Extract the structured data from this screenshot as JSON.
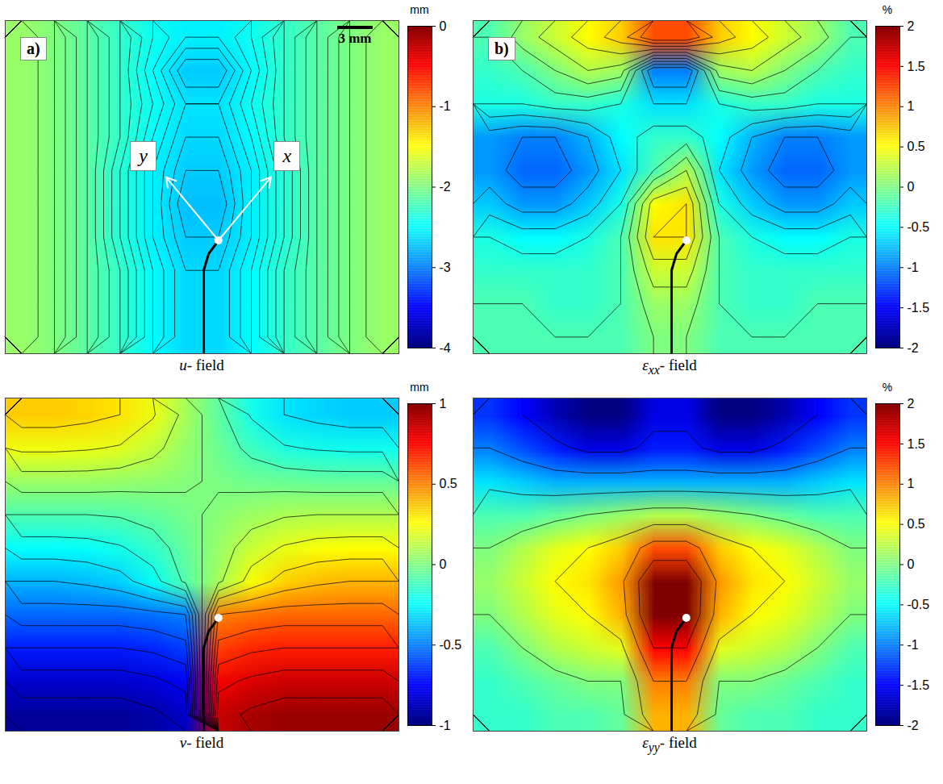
{
  "chart_data": [
    {
      "type": "heatmap",
      "panel_label": "a)",
      "scale_bar": "3 mm",
      "axis_arrows": [
        "y",
        "x"
      ],
      "caption": {
        "symbol": "u",
        "suffix": "- field"
      },
      "unit": "mm",
      "colorbar": {
        "range": [
          -4,
          0
        ],
        "ticks": [
          0,
          -1,
          -2,
          -3,
          -4
        ]
      },
      "crack": {
        "x": [
          6.05,
          6.05,
          6.2,
          6.5
        ],
        "y": [
          10,
          7.5,
          7,
          6.6
        ]
      },
      "crack_tip": {
        "x": 6.5,
        "y": 6.6
      },
      "cells": [
        [
          -1.9,
          -2.0,
          -2.15,
          -2.3,
          -2.45,
          -2.55,
          -2.55,
          -2.45,
          -2.3,
          -2.15,
          -2.0,
          -1.9
        ],
        [
          -1.9,
          -2.0,
          -2.15,
          -2.3,
          -2.5,
          -2.7,
          -2.7,
          -2.5,
          -2.3,
          -2.15,
          -2.0,
          -1.9
        ],
        [
          -1.9,
          -2.0,
          -2.15,
          -2.3,
          -2.45,
          -2.6,
          -2.6,
          -2.45,
          -2.3,
          -2.15,
          -2.0,
          -1.9
        ],
        [
          -1.9,
          -2.0,
          -2.15,
          -2.3,
          -2.5,
          -2.65,
          -2.65,
          -2.5,
          -2.3,
          -2.15,
          -2.0,
          -1.9
        ],
        [
          -1.9,
          -2.0,
          -2.15,
          -2.35,
          -2.55,
          -2.7,
          -2.7,
          -2.55,
          -2.35,
          -2.15,
          -2.0,
          -1.9
        ],
        [
          -1.9,
          -2.0,
          -2.15,
          -2.35,
          -2.55,
          -2.75,
          -2.75,
          -2.55,
          -2.35,
          -2.15,
          -2.0,
          -1.9
        ],
        [
          -1.9,
          -2.0,
          -2.15,
          -2.35,
          -2.55,
          -2.7,
          -2.7,
          -2.55,
          -2.35,
          -2.15,
          -2.0,
          -1.9
        ],
        [
          -1.9,
          -2.0,
          -2.15,
          -2.3,
          -2.5,
          -2.65,
          -2.65,
          -2.5,
          -2.3,
          -2.15,
          -2.0,
          -1.9
        ],
        [
          -1.9,
          -2.0,
          -2.15,
          -2.3,
          -2.5,
          -2.65,
          -2.65,
          -2.5,
          -2.3,
          -2.15,
          -2.0,
          -1.9
        ],
        [
          -1.9,
          -2.0,
          -2.15,
          -2.3,
          -2.5,
          -2.65,
          -2.65,
          -2.5,
          -2.3,
          -2.15,
          -2.0,
          -1.9
        ]
      ]
    },
    {
      "type": "heatmap",
      "panel_label": "b)",
      "caption": {
        "symbol": "ε",
        "subscript": "xx",
        "suffix": "- field"
      },
      "unit": "%",
      "colorbar": {
        "range": [
          -2,
          2
        ],
        "ticks": [
          2,
          1.5,
          1,
          0.5,
          0,
          -0.5,
          -1,
          -1.5,
          -2
        ]
      },
      "crack": {
        "x": [
          6.05,
          6.05,
          6.2,
          6.5
        ],
        "y": [
          10,
          7.5,
          7,
          6.6
        ]
      },
      "crack_tip": {
        "x": 6.5,
        "y": 6.6
      },
      "cells": [
        [
          -0.2,
          0.1,
          0.3,
          0.5,
          0.7,
          1.2,
          1.2,
          0.7,
          0.5,
          0.3,
          0.1,
          -0.2
        ],
        [
          -0.3,
          -0.2,
          0,
          0.2,
          0.1,
          -1,
          -1,
          0.1,
          0.2,
          0,
          -0.2,
          -0.3
        ],
        [
          -0.4,
          -0.4,
          -0.3,
          -0.3,
          -0.4,
          -0.6,
          -0.6,
          -0.4,
          -0.3,
          -0.3,
          -0.4,
          -0.4
        ],
        [
          -0.9,
          -1,
          -1,
          -0.8,
          -0.5,
          -0.3,
          -0.3,
          -0.5,
          -0.8,
          -1,
          -1,
          -0.9
        ],
        [
          -0.9,
          -1.1,
          -1.1,
          -0.9,
          -0.6,
          -0.2,
          0.2,
          -0.6,
          -0.9,
          -1.1,
          -1.1,
          -0.9
        ],
        [
          -0.7,
          -0.9,
          -0.9,
          -0.7,
          -0.4,
          0.5,
          0.6,
          -0.4,
          -0.7,
          -0.9,
          -0.9,
          -0.7
        ],
        [
          -0.4,
          -0.5,
          -0.5,
          -0.4,
          -0.2,
          0.6,
          0.6,
          -0.2,
          -0.4,
          -0.5,
          -0.5,
          -0.4
        ],
        [
          -0.3,
          -0.3,
          -0.3,
          -0.3,
          -0.2,
          0.3,
          0.3,
          -0.2,
          -0.3,
          -0.3,
          -0.3,
          -0.3
        ],
        [
          -0.2,
          -0.2,
          -0.3,
          -0.3,
          -0.2,
          0.1,
          0.1,
          -0.2,
          -0.3,
          -0.3,
          -0.2,
          -0.2
        ],
        [
          -0.2,
          -0.2,
          -0.2,
          -0.2,
          -0.2,
          0,
          0,
          -0.2,
          -0.2,
          -0.2,
          -0.2,
          -0.2
        ]
      ]
    },
    {
      "type": "heatmap",
      "caption": {
        "symbol": "v",
        "suffix": "- field"
      },
      "unit": "mm",
      "colorbar": {
        "range": [
          -1,
          1
        ],
        "ticks": [
          1,
          0.5,
          0,
          -0.5,
          -1
        ]
      },
      "crack": {
        "x": [
          6.05,
          6.05,
          6.2,
          6.5
        ],
        "y": [
          10,
          7.5,
          7,
          6.6
        ]
      },
      "crack_tip": {
        "x": 6.5,
        "y": 6.6
      },
      "cells": [
        [
          0.35,
          0.35,
          0.33,
          0.3,
          0.21,
          0.07,
          -0.07,
          -0.21,
          -0.3,
          -0.33,
          -0.35,
          -0.35
        ],
        [
          0.22,
          0.22,
          0.21,
          0.19,
          0.13,
          0.04,
          -0.04,
          -0.13,
          -0.19,
          -0.21,
          -0.22,
          -0.22
        ],
        [
          0.05,
          0.05,
          0.05,
          0.04,
          0.03,
          0.01,
          -0.01,
          -0.03,
          -0.04,
          -0.05,
          -0.05,
          -0.05
        ],
        [
          -0.1,
          -0.1,
          -0.1,
          -0.09,
          -0.06,
          -0.02,
          0.02,
          0.06,
          0.09,
          0.1,
          0.1,
          0.1
        ],
        [
          -0.25,
          -0.25,
          -0.24,
          -0.21,
          -0.15,
          -0.05,
          0.05,
          0.15,
          0.21,
          0.24,
          0.25,
          0.25
        ],
        [
          -0.4,
          -0.4,
          -0.38,
          -0.34,
          -0.24,
          -0.08,
          0.08,
          0.24,
          0.34,
          0.38,
          0.4,
          0.4
        ],
        [
          -0.55,
          -0.55,
          -0.55,
          -0.55,
          -0.53,
          -0.5,
          0.5,
          0.53,
          0.55,
          0.55,
          0.55,
          0.55
        ],
        [
          -0.7,
          -0.7,
          -0.7,
          -0.7,
          -0.68,
          -0.63,
          0.63,
          0.68,
          0.7,
          0.7,
          0.7,
          0.7
        ],
        [
          -0.85,
          -0.85,
          -0.85,
          -0.85,
          -0.82,
          -0.77,
          0.77,
          0.82,
          0.85,
          0.85,
          0.85,
          0.85
        ],
        [
          -0.95,
          -0.95,
          -0.95,
          -0.95,
          -0.92,
          -0.86,
          0.86,
          0.92,
          0.95,
          0.95,
          0.95,
          0.95
        ]
      ]
    },
    {
      "type": "heatmap",
      "caption": {
        "symbol": "ε",
        "subscript": "yy",
        "suffix": "- field"
      },
      "unit": "%",
      "colorbar": {
        "range": [
          -2,
          2
        ],
        "ticks": [
          2,
          1.5,
          1,
          0.5,
          0,
          -0.5,
          -1,
          -1.5,
          -2
        ]
      },
      "crack": {
        "x": [
          6.05,
          6.05,
          6.2,
          6.5
        ],
        "y": [
          10,
          7.5,
          7,
          6.6
        ]
      },
      "crack_tip": {
        "x": 6.5,
        "y": 6.6
      },
      "cells": [
        [
          -1.3,
          -1.5,
          -1.8,
          -2,
          -2,
          -1.6,
          -1.6,
          -2,
          -2,
          -1.8,
          -1.5,
          -1.3
        ],
        [
          -1,
          -1.2,
          -1.4,
          -1.6,
          -1.6,
          -1.4,
          -1.4,
          -1.6,
          -1.6,
          -1.4,
          -1.2,
          -1
        ],
        [
          -0.6,
          -0.7,
          -0.8,
          -0.8,
          -0.8,
          -0.8,
          -0.8,
          -0.8,
          -0.8,
          -0.8,
          -0.7,
          -0.6
        ],
        [
          -0.2,
          -0.2,
          -0.1,
          0,
          0.1,
          0.2,
          0.2,
          0.1,
          0,
          -0.1,
          -0.2,
          -0.2
        ],
        [
          0,
          0.2,
          0.4,
          0.5,
          0.7,
          1.2,
          1.2,
          0.7,
          0.5,
          0.4,
          0.2,
          0
        ],
        [
          0.1,
          0.3,
          0.5,
          0.6,
          0.9,
          2,
          2,
          0.9,
          0.6,
          0.5,
          0.3,
          0.1
        ],
        [
          0,
          0.2,
          0.4,
          0.5,
          0.8,
          2,
          2,
          0.8,
          0.5,
          0.4,
          0.2,
          0
        ],
        [
          -0.2,
          0,
          0.2,
          0.3,
          0.4,
          1.5,
          1.5,
          0.4,
          0.3,
          0.2,
          0,
          -0.2
        ],
        [
          -0.3,
          -0.2,
          -0.1,
          0,
          0,
          1,
          1,
          0,
          0,
          -0.1,
          -0.2,
          -0.3
        ],
        [
          -0.3,
          -0.3,
          -0.2,
          -0.2,
          -0.1,
          0.8,
          0.8,
          -0.1,
          -0.2,
          -0.2,
          -0.3,
          -0.3
        ]
      ]
    }
  ]
}
